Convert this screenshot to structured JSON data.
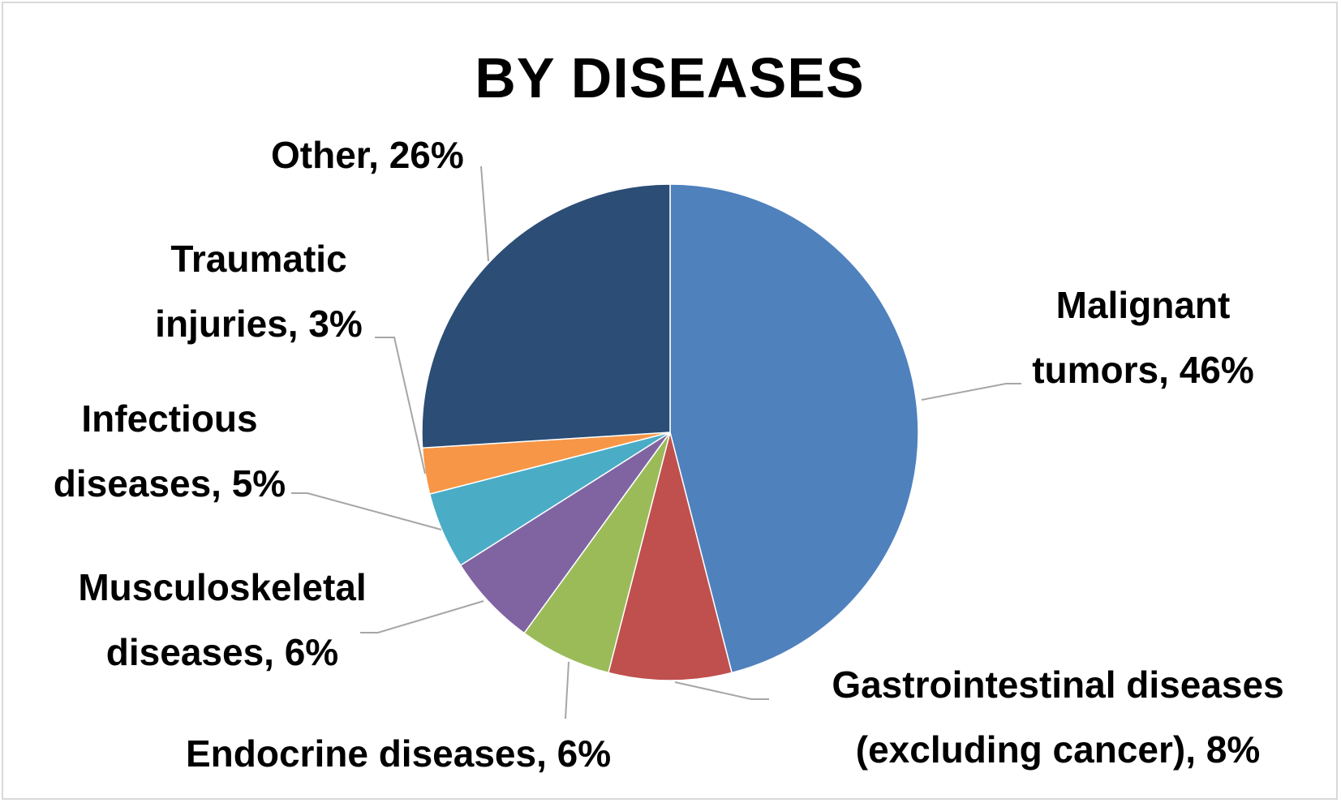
{
  "chart_data": {
    "type": "pie",
    "title": "BY DISEASES",
    "slices": [
      {
        "label": "Malignant tumors",
        "value": 46,
        "color": "#4f81bd"
      },
      {
        "label": "Gastrointestinal diseases (excluding cancer)",
        "value": 8,
        "color": "#c0504d"
      },
      {
        "label": "Endocrine diseases",
        "value": 6,
        "color": "#9bbb59"
      },
      {
        "label": "Musculoskeletal diseases",
        "value": 6,
        "color": "#8064a2"
      },
      {
        "label": "Infectious diseases",
        "value": 5,
        "color": "#4bacc6"
      },
      {
        "label": "Traumatic injuries",
        "value": 3,
        "color": "#f79646"
      },
      {
        "label": "Other",
        "value": 26,
        "color": "#2c4d75"
      }
    ],
    "data_labels": {
      "malignant": [
        "Malignant",
        "tumors, 46%"
      ],
      "gastro": [
        "Gastrointestinal diseases",
        "(excluding cancer), 8%"
      ],
      "endocrine": [
        "Endocrine diseases, 6%"
      ],
      "musculo": [
        "Musculoskeletal",
        "diseases, 6%"
      ],
      "infectious": [
        "Infectious",
        "diseases, 5%"
      ],
      "traumatic": [
        "Traumatic",
        "injuries, 3%"
      ],
      "other": [
        "Other, 26%"
      ]
    },
    "legend": "none"
  }
}
